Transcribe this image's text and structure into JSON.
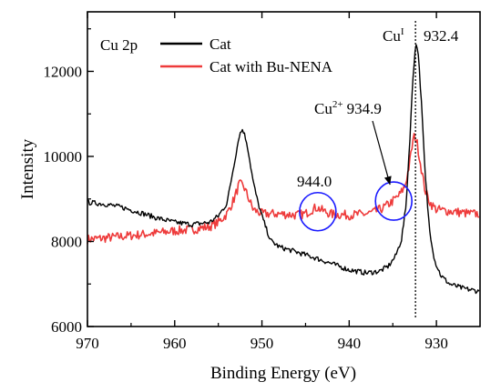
{
  "chart_data": {
    "type": "line",
    "panel_label": "Cu 2p",
    "xlabel": "Binding Energy (eV)",
    "ylabel": "Intensity",
    "xlim": [
      970,
      925
    ],
    "ylim": [
      6000,
      13400
    ],
    "x_ticks": [
      970,
      960,
      950,
      940,
      930
    ],
    "y_ticks": [
      6000,
      8000,
      10000,
      12000
    ],
    "x_reversed": true,
    "grid": false,
    "legend_position": "top-left",
    "series": [
      {
        "name": "Cat",
        "color": "#000000",
        "points": [
          [
            970,
            8920
          ],
          [
            968,
            8880
          ],
          [
            966,
            8800
          ],
          [
            964,
            8680
          ],
          [
            962,
            8550
          ],
          [
            960,
            8450
          ],
          [
            958,
            8400
          ],
          [
            956,
            8450
          ],
          [
            955,
            8600
          ],
          [
            954,
            8900
          ],
          [
            953.3,
            9700
          ],
          [
            952.6,
            10500
          ],
          [
            952.2,
            10650
          ],
          [
            951.7,
            10300
          ],
          [
            951,
            9400
          ],
          [
            950.5,
            8950
          ],
          [
            950,
            8600
          ],
          [
            949.5,
            8300
          ],
          [
            949,
            8020
          ],
          [
            948,
            7870
          ],
          [
            946,
            7750
          ],
          [
            944,
            7620
          ],
          [
            942,
            7480
          ],
          [
            940,
            7330
          ],
          [
            938,
            7260
          ],
          [
            936.5,
            7300
          ],
          [
            935.5,
            7420
          ],
          [
            934.7,
            7650
          ],
          [
            934,
            8050
          ],
          [
            933.5,
            8800
          ],
          [
            933.1,
            10200
          ],
          [
            932.7,
            11800
          ],
          [
            932.4,
            12650
          ],
          [
            932.1,
            12500
          ],
          [
            931.7,
            11200
          ],
          [
            931.3,
            9600
          ],
          [
            930.8,
            8300
          ],
          [
            930.2,
            7550
          ],
          [
            929.5,
            7200
          ],
          [
            928.5,
            7000
          ],
          [
            927,
            6900
          ],
          [
            925,
            6820
          ]
        ]
      },
      {
        "name": "Cat with Bu-NENA",
        "color": "#ee3b3b",
        "points": [
          [
            970,
            8050
          ],
          [
            968,
            8080
          ],
          [
            966,
            8120
          ],
          [
            964,
            8160
          ],
          [
            962,
            8200
          ],
          [
            960,
            8250
          ],
          [
            958,
            8280
          ],
          [
            956,
            8350
          ],
          [
            955,
            8450
          ],
          [
            954,
            8650
          ],
          [
            953.2,
            9000
          ],
          [
            952.6,
            9350
          ],
          [
            952.1,
            9300
          ],
          [
            951.5,
            9000
          ],
          [
            951,
            8750
          ],
          [
            950,
            8650
          ],
          [
            948,
            8650
          ],
          [
            946,
            8620
          ],
          [
            945,
            8650
          ],
          [
            944.3,
            8750
          ],
          [
            943.7,
            8800
          ],
          [
            943,
            8720
          ],
          [
            942,
            8640
          ],
          [
            940,
            8620
          ],
          [
            938,
            8650
          ],
          [
            937,
            8700
          ],
          [
            936,
            8800
          ],
          [
            935,
            8950
          ],
          [
            934.2,
            9100
          ],
          [
            933.6,
            9300
          ],
          [
            933.1,
            9800
          ],
          [
            932.7,
            10350
          ],
          [
            932.5,
            10500
          ],
          [
            932.2,
            10300
          ],
          [
            931.8,
            9800
          ],
          [
            931.3,
            9200
          ],
          [
            930.7,
            8900
          ],
          [
            930,
            8750
          ],
          [
            928,
            8700
          ],
          [
            926,
            8650
          ],
          [
            925,
            8650
          ]
        ]
      }
    ],
    "annotations": {
      "cu_one_label": "Cu",
      "cu_one_super": "I",
      "cu_one_value": "932.4",
      "cu_two_label": "Cu",
      "cu_two_super": "2+",
      "cu_two_value": "934.9",
      "sat_label": "944.0",
      "cu_one_x": 932.4,
      "circles": [
        {
          "x": 943.6,
          "y": 8700
        },
        {
          "x": 934.9,
          "y": 8950
        }
      ]
    }
  }
}
